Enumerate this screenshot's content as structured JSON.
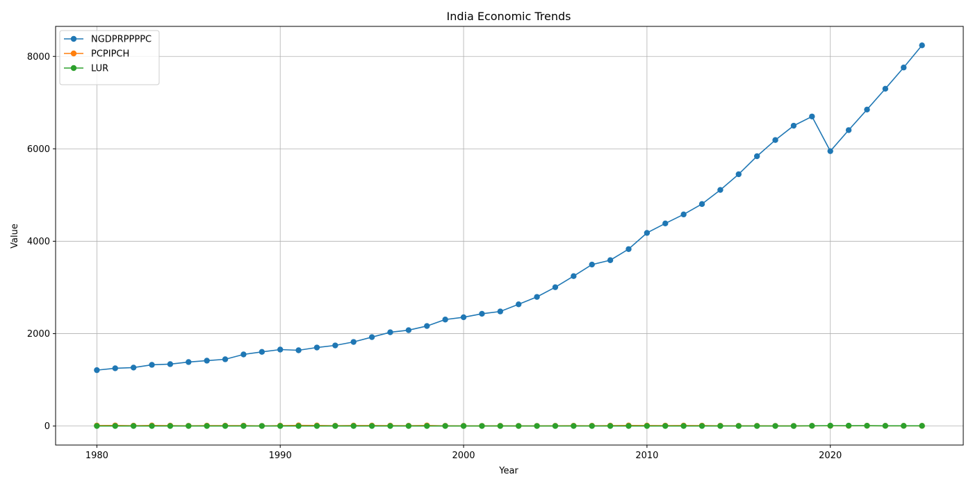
{
  "chart_data": {
    "type": "line",
    "title": "India Economic Trends",
    "xlabel": "Year",
    "ylabel": "Value",
    "xlim": [
      1977.75,
      2027.25
    ],
    "ylim": [
      -411,
      8650
    ],
    "xticks": [
      1980,
      1990,
      2000,
      2010,
      2020
    ],
    "yticks": [
      0,
      2000,
      4000,
      6000,
      8000
    ],
    "grid": true,
    "legend": "top-left",
    "x": [
      1980,
      1981,
      1982,
      1983,
      1984,
      1985,
      1986,
      1987,
      1988,
      1989,
      1990,
      1991,
      1992,
      1993,
      1994,
      1995,
      1996,
      1997,
      1998,
      1999,
      2000,
      2001,
      2002,
      2003,
      2004,
      2005,
      2006,
      2007,
      2008,
      2009,
      2010,
      2011,
      2012,
      2013,
      2014,
      2015,
      2016,
      2017,
      2018,
      2019,
      2020,
      2021,
      2022,
      2023,
      2024,
      2025
    ],
    "series": [
      {
        "name": "NGDPRPPPPC",
        "color": "#1f77b4",
        "values": [
          1210,
          1250,
          1265,
          1325,
          1340,
          1385,
          1415,
          1445,
          1550,
          1605,
          1655,
          1640,
          1700,
          1745,
          1820,
          1925,
          2030,
          2075,
          2165,
          2305,
          2355,
          2430,
          2480,
          2635,
          2795,
          3005,
          3245,
          3495,
          3590,
          3830,
          4180,
          4385,
          4580,
          4805,
          5110,
          5450,
          5840,
          6190,
          6500,
          6700,
          5950,
          6405,
          6850,
          7300,
          7760,
          8240
        ]
      },
      {
        "name": "PCPIPCH",
        "color": "#ff7f0e",
        "values": [
          11.3,
          13.1,
          7.9,
          11.9,
          8.3,
          5.6,
          8.7,
          8.8,
          9.4,
          3.3,
          9.0,
          13.9,
          11.8,
          6.4,
          10.2,
          10.2,
          9.0,
          7.2,
          13.2,
          4.7,
          4.0,
          3.7,
          4.4,
          3.8,
          3.8,
          4.4,
          6.7,
          6.2,
          9.1,
          12.3,
          10.5,
          9.5,
          10.0,
          9.4,
          5.8,
          4.9,
          4.5,
          3.6,
          3.4,
          4.8,
          6.2,
          5.5,
          6.7,
          5.4,
          4.7,
          4.2
        ]
      },
      {
        "name": "LUR",
        "color": "#2ca02c",
        "values": [
          2.0,
          2.0,
          2.0,
          2.0,
          2.0,
          2.0,
          2.0,
          2.0,
          2.0,
          2.0,
          2.0,
          2.0,
          2.0,
          2.0,
          2.0,
          2.0,
          2.0,
          2.0,
          2.0,
          2.0,
          2.0,
          2.0,
          2.0,
          2.0,
          2.0,
          2.0,
          2.0,
          2.0,
          2.0,
          2.0,
          2.0,
          2.0,
          2.0,
          2.0,
          2.0,
          2.0,
          2.0,
          2.0,
          2.0,
          5.3,
          8.0,
          7.7,
          7.3,
          4.9,
          4.9,
          4.9
        ]
      }
    ]
  }
}
